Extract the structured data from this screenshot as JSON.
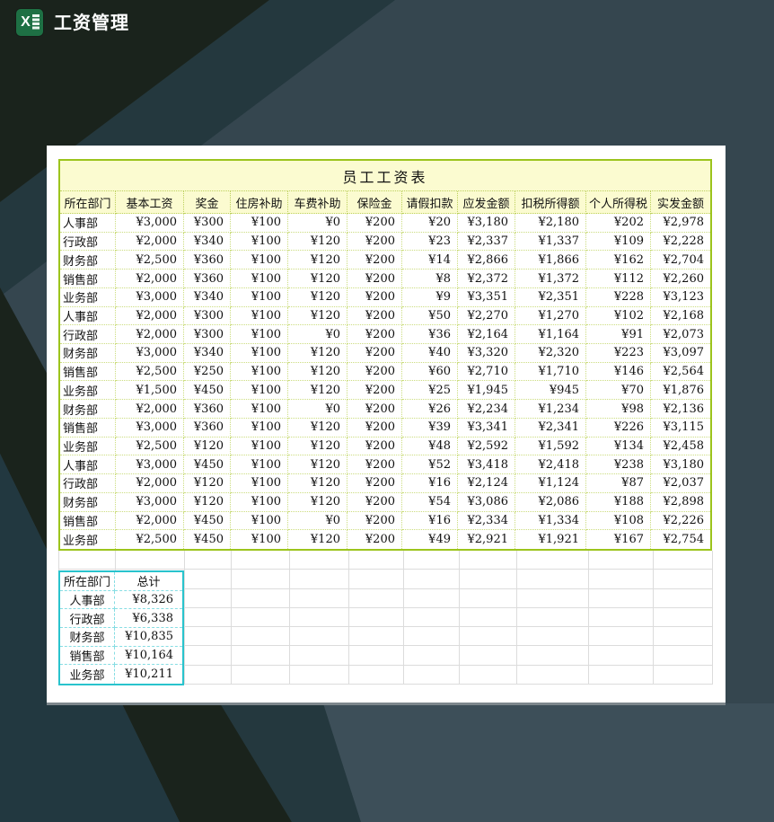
{
  "app": {
    "title": "工资管理",
    "icon": "excel-icon",
    "icon_letter": "X"
  },
  "sheet": {
    "table_title": "员工工资表",
    "columns": [
      "所在部门",
      "基本工资",
      "奖金",
      "住房补助",
      "车费补助",
      "保险金",
      "请假扣款",
      "应发金额",
      "扣税所得额",
      "个人所得税",
      "实发金额"
    ],
    "rows": [
      [
        "人事部",
        "¥3,000",
        "¥300",
        "¥100",
        "¥0",
        "¥200",
        "¥20",
        "¥3,180",
        "¥2,180",
        "¥202",
        "¥2,978"
      ],
      [
        "行政部",
        "¥2,000",
        "¥340",
        "¥100",
        "¥120",
        "¥200",
        "¥23",
        "¥2,337",
        "¥1,337",
        "¥109",
        "¥2,228"
      ],
      [
        "财务部",
        "¥2,500",
        "¥360",
        "¥100",
        "¥120",
        "¥200",
        "¥14",
        "¥2,866",
        "¥1,866",
        "¥162",
        "¥2,704"
      ],
      [
        "销售部",
        "¥2,000",
        "¥360",
        "¥100",
        "¥120",
        "¥200",
        "¥8",
        "¥2,372",
        "¥1,372",
        "¥112",
        "¥2,260"
      ],
      [
        "业务部",
        "¥3,000",
        "¥340",
        "¥100",
        "¥120",
        "¥200",
        "¥9",
        "¥3,351",
        "¥2,351",
        "¥228",
        "¥3,123"
      ],
      [
        "人事部",
        "¥2,000",
        "¥300",
        "¥100",
        "¥120",
        "¥200",
        "¥50",
        "¥2,270",
        "¥1,270",
        "¥102",
        "¥2,168"
      ],
      [
        "行政部",
        "¥2,000",
        "¥300",
        "¥100",
        "¥0",
        "¥200",
        "¥36",
        "¥2,164",
        "¥1,164",
        "¥91",
        "¥2,073"
      ],
      [
        "财务部",
        "¥3,000",
        "¥340",
        "¥100",
        "¥120",
        "¥200",
        "¥40",
        "¥3,320",
        "¥2,320",
        "¥223",
        "¥3,097"
      ],
      [
        "销售部",
        "¥2,500",
        "¥250",
        "¥100",
        "¥120",
        "¥200",
        "¥60",
        "¥2,710",
        "¥1,710",
        "¥146",
        "¥2,564"
      ],
      [
        "业务部",
        "¥1,500",
        "¥450",
        "¥100",
        "¥120",
        "¥200",
        "¥25",
        "¥1,945",
        "¥945",
        "¥70",
        "¥1,876"
      ],
      [
        "财务部",
        "¥2,000",
        "¥360",
        "¥100",
        "¥0",
        "¥200",
        "¥26",
        "¥2,234",
        "¥1,234",
        "¥98",
        "¥2,136"
      ],
      [
        "销售部",
        "¥3,000",
        "¥360",
        "¥100",
        "¥120",
        "¥200",
        "¥39",
        "¥3,341",
        "¥2,341",
        "¥226",
        "¥3,115"
      ],
      [
        "业务部",
        "¥2,500",
        "¥120",
        "¥100",
        "¥120",
        "¥200",
        "¥48",
        "¥2,592",
        "¥1,592",
        "¥134",
        "¥2,458"
      ],
      [
        "人事部",
        "¥3,000",
        "¥450",
        "¥100",
        "¥120",
        "¥200",
        "¥52",
        "¥3,418",
        "¥2,418",
        "¥238",
        "¥3,180"
      ],
      [
        "行政部",
        "¥2,000",
        "¥120",
        "¥100",
        "¥120",
        "¥200",
        "¥16",
        "¥2,124",
        "¥1,124",
        "¥87",
        "¥2,037"
      ],
      [
        "财务部",
        "¥3,000",
        "¥120",
        "¥100",
        "¥120",
        "¥200",
        "¥54",
        "¥3,086",
        "¥2,086",
        "¥188",
        "¥2,898"
      ],
      [
        "销售部",
        "¥2,000",
        "¥450",
        "¥100",
        "¥0",
        "¥200",
        "¥16",
        "¥2,334",
        "¥1,334",
        "¥108",
        "¥2,226"
      ],
      [
        "业务部",
        "¥2,500",
        "¥450",
        "¥100",
        "¥120",
        "¥200",
        "¥49",
        "¥2,921",
        "¥1,921",
        "¥167",
        "¥2,754"
      ]
    ],
    "summary": {
      "columns": [
        "所在部门",
        "总计"
      ],
      "rows": [
        [
          "人事部",
          "¥8,326"
        ],
        [
          "行政部",
          "¥6,338"
        ],
        [
          "财务部",
          "¥10,835"
        ],
        [
          "销售部",
          "¥10,164"
        ],
        [
          "业务部",
          "¥10,211"
        ]
      ]
    }
  },
  "colors": {
    "bg_base": "#35464f",
    "bg_dark_stripe": "#1a231c",
    "bg_teal_stripe": "#24383e",
    "bg_teal_dark": "#223840",
    "bg_light_wedge": "#3d4f59",
    "table_border": "#9cc41c",
    "table_header_fill": "#fbfbd0",
    "summary_border": "#29c3cd",
    "excel_green": "#1e7044"
  }
}
